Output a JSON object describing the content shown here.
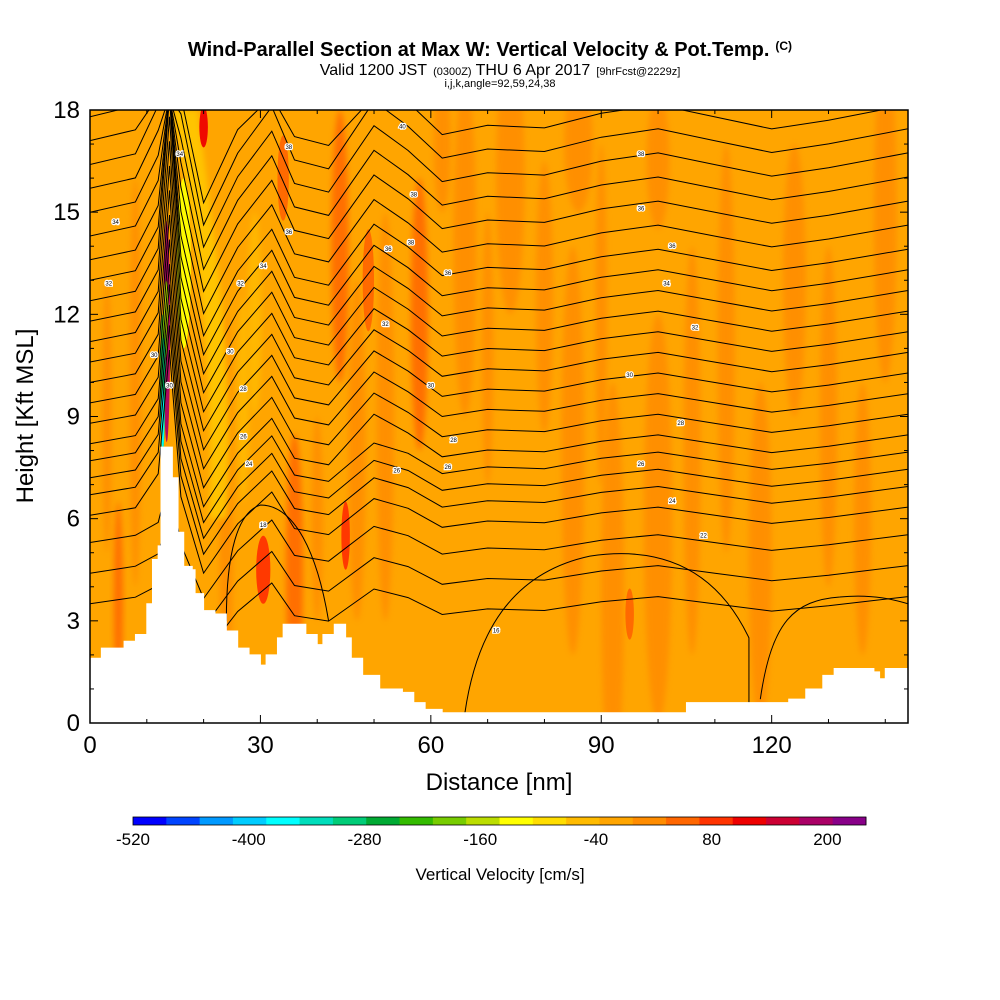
{
  "chart_data": {
    "type": "heatmap",
    "title": "Wind-Parallel Section at Max W: Vertical Velocity & Pot.Temp.",
    "title_units": "(C)",
    "subtitle_main_a": "Valid 1200 JST",
    "subtitle_small_a": "(0300Z)",
    "subtitle_main_b": "THU 6 Apr 2017",
    "subtitle_small_b": "[9hrFcst@2229z]",
    "subtitle2": "i,j,k,angle=92,59,24,38",
    "xlabel": "Distance [nm]",
    "ylabel": "Height [Kft MSL]",
    "xlim": [
      0,
      144
    ],
    "ylim": [
      0,
      18
    ],
    "x_ticks": [
      0,
      30,
      60,
      90,
      120
    ],
    "y_ticks": [
      0,
      3,
      6,
      9,
      12,
      15,
      18
    ],
    "colorbar": {
      "label": "Vertical Velocity [cm/s]",
      "tick_labels": [
        "-520",
        "-400",
        "-280",
        "-160",
        "-40",
        "80",
        "200"
      ],
      "tick_values": [
        -520,
        -400,
        -280,
        -160,
        -40,
        80,
        200
      ],
      "range": [
        -520,
        240
      ],
      "colors": [
        "#0000ff",
        "#0044ff",
        "#0099ff",
        "#00ccff",
        "#00ffff",
        "#00ddbb",
        "#00cc77",
        "#00aa33",
        "#33bb00",
        "#77cc00",
        "#bbdd00",
        "#ffff00",
        "#ffdd00",
        "#ffbb00",
        "#ffa500",
        "#ff8c00",
        "#ff6600",
        "#ff3300",
        "#ee0000",
        "#cc0033",
        "#aa0066",
        "#880088"
      ]
    },
    "terrain": [
      [
        0,
        1.9
      ],
      [
        2,
        2.2
      ],
      [
        6,
        2.4
      ],
      [
        8,
        2.6
      ],
      [
        10,
        3.5
      ],
      [
        11,
        4.8
      ],
      [
        12,
        5.2
      ],
      [
        12.5,
        8.1
      ],
      [
        14,
        8.1
      ],
      [
        14.5,
        7.2
      ],
      [
        15.5,
        5.6
      ],
      [
        16.5,
        4.6
      ],
      [
        18,
        4.5
      ],
      [
        18.5,
        3.8
      ],
      [
        20,
        3.3
      ],
      [
        22,
        3.2
      ],
      [
        24,
        2.7
      ],
      [
        26,
        2.2
      ],
      [
        28,
        2.0
      ],
      [
        30,
        1.7
      ],
      [
        31,
        2.0
      ],
      [
        33,
        2.5
      ],
      [
        34,
        2.9
      ],
      [
        36,
        2.9
      ],
      [
        38,
        2.6
      ],
      [
        40,
        2.3
      ],
      [
        41,
        2.6
      ],
      [
        43,
        2.9
      ],
      [
        45,
        2.5
      ],
      [
        46,
        1.9
      ],
      [
        48,
        1.4
      ],
      [
        51,
        1.0
      ],
      [
        55,
        0.9
      ],
      [
        57,
        0.6
      ],
      [
        59,
        0.4
      ],
      [
        62,
        0.3
      ],
      [
        80,
        0.3
      ],
      [
        103,
        0.3
      ],
      [
        105,
        0.6
      ],
      [
        118,
        0.6
      ],
      [
        123,
        0.7
      ],
      [
        126,
        1.0
      ],
      [
        129,
        1.4
      ],
      [
        131,
        1.6
      ],
      [
        135,
        1.6
      ],
      [
        138,
        1.5
      ],
      [
        139,
        1.3
      ],
      [
        140,
        1.6
      ],
      [
        144,
        1.6
      ]
    ],
    "velocity_features": [
      {
        "x": 13.5,
        "y": 11.5,
        "w": 1.2,
        "h": 6.5,
        "value": 200
      },
      {
        "x": 12.8,
        "y": 10.0,
        "w": 0.9,
        "h": 4.0,
        "value": -250
      },
      {
        "x": 12.8,
        "y": 9.0,
        "w": 0.6,
        "h": 2.0,
        "value": -360
      },
      {
        "x": 16.5,
        "y": 13.5,
        "w": 2.5,
        "h": 5.0,
        "value": -120
      },
      {
        "x": 20.0,
        "y": 17.5,
        "w": 1.5,
        "h": 1.2,
        "value": 120
      },
      {
        "x": 30.5,
        "y": 4.5,
        "w": 2.5,
        "h": 2.0,
        "value": 80
      },
      {
        "x": 45.0,
        "y": 5.5,
        "w": 1.5,
        "h": 2.0,
        "value": 100
      },
      {
        "x": 49.0,
        "y": 13.0,
        "w": 2.0,
        "h": 3.0,
        "value": 40
      },
      {
        "x": 95.0,
        "y": 3.2,
        "w": 1.5,
        "h": 1.5,
        "value": 60
      },
      {
        "x": 34.0,
        "y": 16.0,
        "w": 2.0,
        "h": 2.5,
        "value": 40
      }
    ],
    "theta_labels": [
      {
        "x": 15.8,
        "y": 16.7,
        "text": "34"
      },
      {
        "x": 4.5,
        "y": 14.7,
        "text": "34"
      },
      {
        "x": 3.3,
        "y": 12.9,
        "text": "32"
      },
      {
        "x": 11.3,
        "y": 10.8,
        "text": "30"
      },
      {
        "x": 14.0,
        "y": 9.9,
        "text": "30"
      },
      {
        "x": 26.5,
        "y": 12.9,
        "text": "32"
      },
      {
        "x": 24.7,
        "y": 10.9,
        "text": "30"
      },
      {
        "x": 27.0,
        "y": 9.8,
        "text": "28"
      },
      {
        "x": 27.0,
        "y": 8.4,
        "text": "26"
      },
      {
        "x": 28.0,
        "y": 7.6,
        "text": "24"
      },
      {
        "x": 30.5,
        "y": 5.8,
        "text": "18"
      },
      {
        "x": 30.5,
        "y": 13.4,
        "text": "34"
      },
      {
        "x": 35.0,
        "y": 14.4,
        "text": "36"
      },
      {
        "x": 35.0,
        "y": 16.9,
        "text": "38"
      },
      {
        "x": 52.5,
        "y": 13.9,
        "text": "36"
      },
      {
        "x": 52.0,
        "y": 11.7,
        "text": "32"
      },
      {
        "x": 54.0,
        "y": 7.4,
        "text": "26"
      },
      {
        "x": 55.0,
        "y": 17.5,
        "text": "40"
      },
      {
        "x": 57.0,
        "y": 15.5,
        "text": "38"
      },
      {
        "x": 56.5,
        "y": 14.1,
        "text": "38"
      },
      {
        "x": 63.0,
        "y": 13.2,
        "text": "36"
      },
      {
        "x": 60.0,
        "y": 9.9,
        "text": "30"
      },
      {
        "x": 64.0,
        "y": 8.3,
        "text": "28"
      },
      {
        "x": 63.0,
        "y": 7.5,
        "text": "26"
      },
      {
        "x": 71.5,
        "y": 2.7,
        "text": "16"
      },
      {
        "x": 97.0,
        "y": 16.7,
        "text": "38"
      },
      {
        "x": 97.0,
        "y": 15.1,
        "text": "36"
      },
      {
        "x": 102.5,
        "y": 14.0,
        "text": "36"
      },
      {
        "x": 101.5,
        "y": 12.9,
        "text": "34"
      },
      {
        "x": 106.5,
        "y": 11.6,
        "text": "32"
      },
      {
        "x": 95.0,
        "y": 10.2,
        "text": "30"
      },
      {
        "x": 104.0,
        "y": 8.8,
        "text": "28"
      },
      {
        "x": 97.0,
        "y": 7.6,
        "text": "26"
      },
      {
        "x": 102.5,
        "y": 6.5,
        "text": "24"
      },
      {
        "x": 108.0,
        "y": 5.5,
        "text": "22"
      }
    ]
  }
}
